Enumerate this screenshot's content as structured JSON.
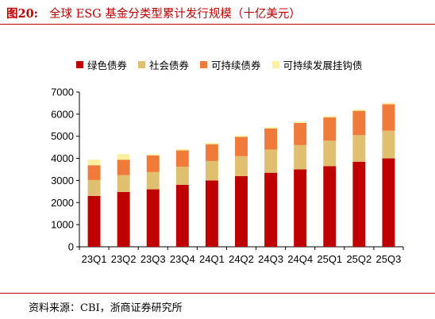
{
  "figure": {
    "label": "图20:",
    "title": "全球 ESG 基金分类型累计发行规模（十亿美元）",
    "source": "资料来源：CBI，浙商证券研究所"
  },
  "colors": {
    "green_bond": "#c00000",
    "social_bond": "#e0c070",
    "sustainability_bond": "#ef7a3a",
    "sustainability_linked_bond": "#fdf1a0",
    "accent": "#c00000"
  },
  "chart_data": {
    "type": "bar",
    "stacked": true,
    "categories": [
      "23Q1",
      "23Q2",
      "23Q3",
      "23Q4",
      "24Q1",
      "24Q2",
      "24Q3",
      "24Q4",
      "25Q1",
      "25Q2",
      "25Q3"
    ],
    "series": [
      {
        "name": "绿色债券",
        "color": "#c00000",
        "values": [
          2300,
          2480,
          2600,
          2800,
          3000,
          3200,
          3350,
          3500,
          3650,
          3850,
          4000
        ]
      },
      {
        "name": "社会债券",
        "color": "#e0c070",
        "values": [
          720,
          760,
          780,
          820,
          880,
          900,
          1050,
          1100,
          1150,
          1200,
          1250
        ]
      },
      {
        "name": "可持续债券",
        "color": "#ef7a3a",
        "values": [
          670,
          700,
          750,
          740,
          760,
          870,
          950,
          1000,
          1050,
          1100,
          1200
        ]
      },
      {
        "name": "可持续发展挂钩债",
        "color": "#fdf1a0",
        "values": [
          250,
          250,
          60,
          60,
          60,
          60,
          60,
          60,
          60,
          60,
          60
        ]
      }
    ],
    "ylim": [
      0,
      7000
    ],
    "yticks": [
      0,
      1000,
      2000,
      3000,
      4000,
      5000,
      6000,
      7000
    ],
    "xlabel": "",
    "ylabel": "",
    "grid": false,
    "legend_position": "top"
  }
}
